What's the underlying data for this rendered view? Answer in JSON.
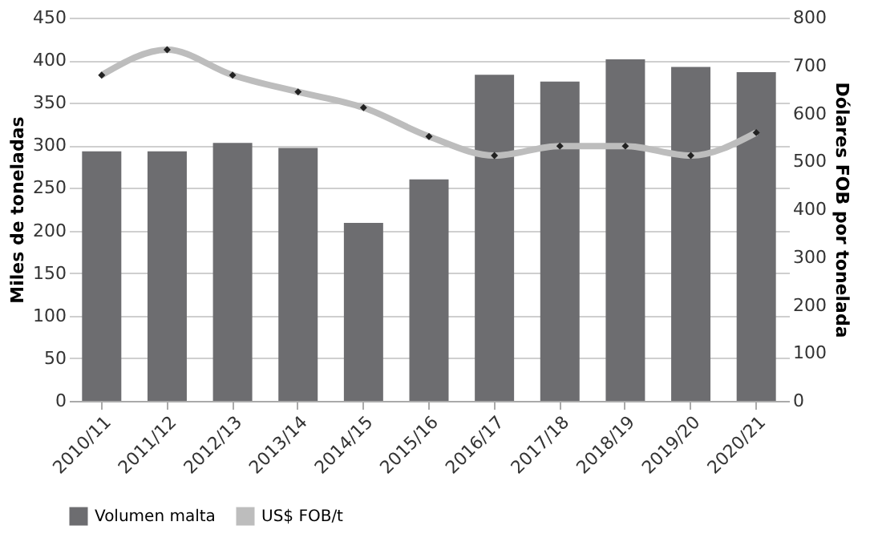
{
  "chart_data": {
    "type": "bar",
    "categories": [
      "2010/11",
      "2011/12",
      "2012/13",
      "2013/14",
      "2014/15",
      "2015/16",
      "2016/17",
      "2017/18",
      "2018/19",
      "2019/20",
      "2020/21"
    ],
    "series": [
      {
        "name": "Volumen malta",
        "color": "#6d6d70",
        "values": [
          293,
          293,
          303,
          297,
          209,
          260,
          383,
          375,
          401,
          392,
          386
        ]
      },
      {
        "name": "US$ FOB/t",
        "type": "line",
        "axis": "y2",
        "color": "#bdbdbd",
        "marker": "diamond",
        "values": [
          680,
          733,
          680,
          645,
          612,
          552,
          512,
          532,
          532,
          512,
          560
        ]
      }
    ],
    "ylabel": "Miles de toneladas",
    "y2label": "Dólares FOB  por tonelada",
    "ylim": [
      0,
      450
    ],
    "yticks": [
      0,
      50,
      100,
      150,
      200,
      250,
      300,
      350,
      400,
      450
    ],
    "y2lim": [
      0,
      800
    ],
    "y2ticks": [
      0,
      100,
      200,
      300,
      400,
      500,
      600,
      700,
      800
    ],
    "grid": "y",
    "legend": "bottom"
  }
}
